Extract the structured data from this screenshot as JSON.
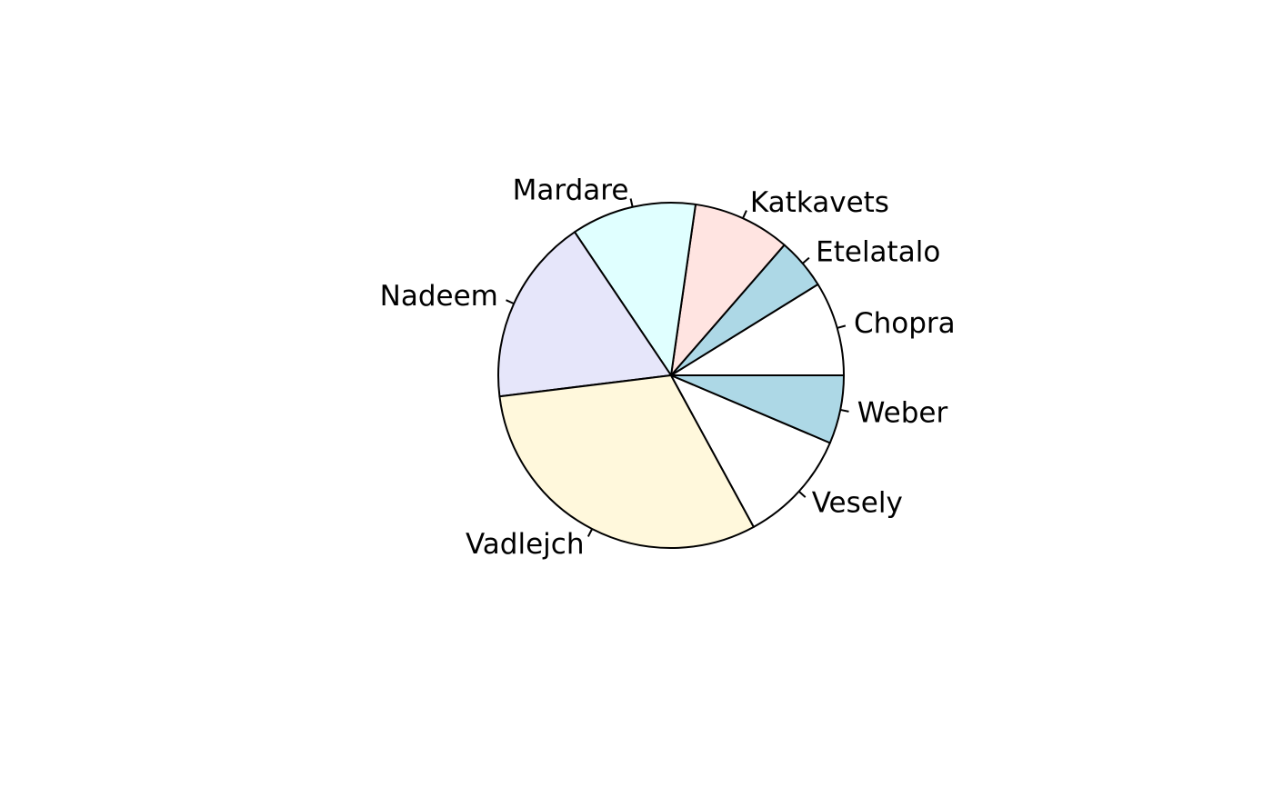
{
  "chart_data": {
    "type": "pie",
    "start_angle_deg": 0,
    "direction": "counterclockwise",
    "categories": [
      "Chopra",
      "Etelatalo",
      "Katkavets",
      "Mardare",
      "Nadeem",
      "Vadlejch",
      "Vesely",
      "Weber"
    ],
    "values": [
      0.0883,
      0.0479,
      0.0911,
      0.1169,
      0.1753,
      0.3099,
      0.1066,
      0.064
    ],
    "colors": [
      "#FFFFFF",
      "#ADD8E6",
      "#FFE4E1",
      "#E0FFFF",
      "#E6E6FA",
      "#FFF8DC",
      "#FFFFFF",
      "#ADD8E6"
    ]
  }
}
